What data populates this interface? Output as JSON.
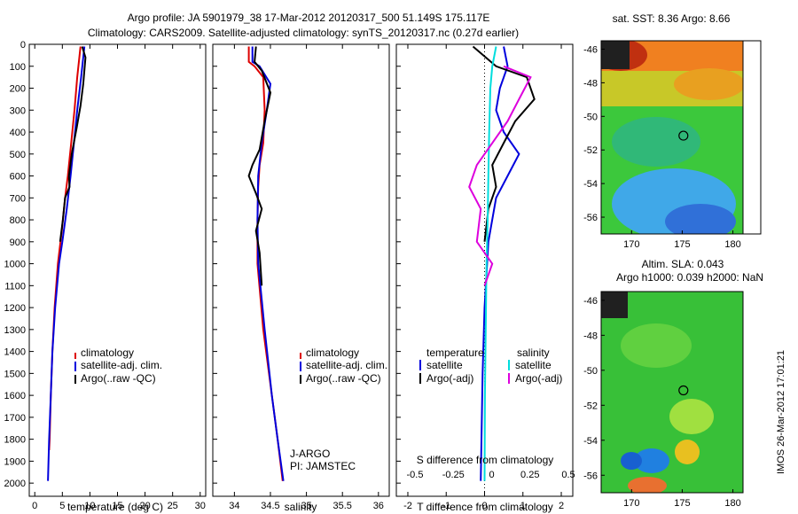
{
  "title": {
    "line1": "Argo profile: JA 5901979_38 17-Mar-2012 20120317_500 51.149S 175.117E",
    "line2": "Climatology: CARS2009. Satellite-adjusted climatology: synTS_20120317.nc (0.27d earlier)"
  },
  "side_label": "IMOS 26-Mar-2012 17:01:21",
  "colors": {
    "clim": "#dd0000",
    "sat": "#0000dd",
    "argo": "#000000",
    "sat_s": "#00dddd",
    "argo_s": "#dd00dd"
  },
  "chart_data": [
    {
      "type": "line",
      "id": "temperature",
      "xlabel": "temperature (deg C)",
      "xlim": [
        -1,
        31
      ],
      "ylim": [
        0,
        2060
      ],
      "xticks": [
        0,
        5,
        10,
        15,
        20,
        25,
        30
      ],
      "yticks": [
        0,
        100,
        200,
        300,
        400,
        500,
        600,
        700,
        800,
        900,
        1000,
        1100,
        1200,
        1300,
        1400,
        1500,
        1600,
        1700,
        1800,
        1900,
        2000
      ],
      "legend": [
        "climatology",
        "satellite-adj. clim.",
        "Argo(..raw -QC)"
      ],
      "series": [
        {
          "name": "climatology",
          "color": "#dd0000",
          "points": [
            [
              8.3,
              10
            ],
            [
              7.7,
              150
            ],
            [
              7.2,
              300
            ],
            [
              6.6,
              450
            ],
            [
              6.0,
              600
            ],
            [
              5.5,
              700
            ],
            [
              4.9,
              850
            ],
            [
              4.2,
              1000
            ],
            [
              3.6,
              1200
            ],
            [
              3.2,
              1400
            ],
            [
              2.9,
              1600
            ],
            [
              2.7,
              1800
            ],
            [
              2.6,
              1850
            ]
          ]
        },
        {
          "name": "satellite-adj. clim.",
          "color": "#0000dd",
          "points": [
            [
              9.0,
              10
            ],
            [
              8.4,
              150
            ],
            [
              7.7,
              300
            ],
            [
              7.1,
              450
            ],
            [
              6.5,
              600
            ],
            [
              5.8,
              750
            ],
            [
              5.0,
              900
            ],
            [
              4.4,
              1000
            ],
            [
              3.7,
              1200
            ],
            [
              3.2,
              1400
            ],
            [
              2.9,
              1600
            ],
            [
              2.6,
              1800
            ],
            [
              2.4,
              1990
            ]
          ]
        },
        {
          "name": "Argo(..raw -QC)",
          "color": "#000000",
          "points": [
            [
              8.6,
              10
            ],
            [
              9.2,
              60
            ],
            [
              8.8,
              180
            ],
            [
              8.3,
              280
            ],
            [
              7.6,
              380
            ],
            [
              6.7,
              500
            ],
            [
              6.2,
              600
            ],
            [
              6.3,
              650
            ],
            [
              5.5,
              700
            ],
            [
              5.1,
              800
            ],
            [
              4.6,
              900
            ]
          ]
        }
      ]
    },
    {
      "type": "line",
      "id": "salinity",
      "xlabel": "salinity",
      "xlim": [
        33.7,
        36.15
      ],
      "ylim": [
        0,
        2060
      ],
      "xticks": [
        34,
        34.5,
        35,
        35.5,
        36
      ],
      "legend": [
        "climatology",
        "satellite-adj. clim.",
        "Argo(..raw -QC)"
      ],
      "annotations": [
        "J-ARGO",
        "PI: JAMSTEC"
      ],
      "series": [
        {
          "name": "climatology",
          "color": "#dd0000",
          "points": [
            [
              34.2,
              10
            ],
            [
              34.2,
              80
            ],
            [
              34.28,
              100
            ],
            [
              34.4,
              150
            ],
            [
              34.42,
              300
            ],
            [
              34.4,
              450
            ],
            [
              34.35,
              550
            ],
            [
              34.33,
              650
            ],
            [
              34.32,
              800
            ],
            [
              34.32,
              1000
            ],
            [
              34.4,
              1300
            ],
            [
              34.52,
              1600
            ],
            [
              34.6,
              1800
            ],
            [
              34.67,
              1990
            ]
          ]
        },
        {
          "name": "satellite-adj. clim.",
          "color": "#0000dd",
          "points": [
            [
              34.25,
              10
            ],
            [
              34.25,
              80
            ],
            [
              34.35,
              100
            ],
            [
              34.5,
              180
            ],
            [
              34.45,
              300
            ],
            [
              34.38,
              450
            ],
            [
              34.33,
              600
            ],
            [
              34.32,
              800
            ],
            [
              34.33,
              1000
            ],
            [
              34.42,
              1300
            ],
            [
              34.52,
              1600
            ],
            [
              34.6,
              1800
            ],
            [
              34.68,
              1990
            ]
          ]
        },
        {
          "name": "Argo(..raw -QC)",
          "color": "#000000",
          "points": [
            [
              34.3,
              10
            ],
            [
              34.28,
              80
            ],
            [
              34.38,
              120
            ],
            [
              34.5,
              220
            ],
            [
              34.42,
              350
            ],
            [
              34.35,
              480
            ],
            [
              34.25,
              550
            ],
            [
              34.2,
              600
            ],
            [
              34.3,
              680
            ],
            [
              34.38,
              750
            ],
            [
              34.3,
              850
            ],
            [
              34.35,
              950
            ],
            [
              34.38,
              1100
            ]
          ]
        }
      ]
    },
    {
      "type": "line",
      "id": "difference",
      "xlabel": "T difference from climatology",
      "xlabel2": "S difference from climatology",
      "xlim": [
        -2.3,
        2.3
      ],
      "ylim": [
        0,
        2060
      ],
      "xticks": [
        -2,
        -1,
        0,
        1,
        2
      ],
      "xticks2": [
        "-0.5",
        "-0.25",
        "0",
        "0.25",
        "0.5"
      ],
      "legend_headers": [
        "temperature",
        "salinity"
      ],
      "legend": [
        "satellite",
        "Argo(-adj)",
        "satellite",
        "Argo(-adj)"
      ],
      "series": [
        {
          "name": "T satellite",
          "color": "#0000dd",
          "points": [
            [
              0.5,
              10
            ],
            [
              0.6,
              100
            ],
            [
              0.4,
              200
            ],
            [
              0.3,
              300
            ],
            [
              0.5,
              400
            ],
            [
              0.9,
              500
            ],
            [
              0.6,
              600
            ],
            [
              0.3,
              700
            ],
            [
              0.1,
              900
            ],
            [
              0.0,
              1200
            ],
            [
              -0.05,
              1500
            ],
            [
              -0.1,
              1990
            ]
          ]
        },
        {
          "name": "T Argo(-adj)",
          "color": "#000000",
          "points": [
            [
              -0.3,
              10
            ],
            [
              0.3,
              100
            ],
            [
              1.1,
              150
            ],
            [
              1.3,
              250
            ],
            [
              0.8,
              350
            ],
            [
              0.5,
              450
            ],
            [
              0.2,
              550
            ],
            [
              0.3,
              650
            ],
            [
              0.1,
              750
            ],
            [
              0.0,
              900
            ]
          ]
        },
        {
          "name": "S satellite",
          "color": "#00dddd",
          "points": [
            [
              0.3,
              10
            ],
            [
              0.2,
              100
            ],
            [
              0.15,
              200
            ],
            [
              0.12,
              400
            ],
            [
              0.1,
              600
            ],
            [
              0.08,
              800
            ],
            [
              0.05,
              1000
            ],
            [
              0.03,
              1300
            ],
            [
              0.01,
              1600
            ],
            [
              0.0,
              1990
            ]
          ]
        },
        {
          "name": "S Argo(-adj)",
          "color": "#dd00dd",
          "points": [
            [
              0.5,
              100
            ],
            [
              1.2,
              150
            ],
            [
              0.9,
              250
            ],
            [
              0.6,
              350
            ],
            [
              0.2,
              450
            ],
            [
              -0.2,
              550
            ],
            [
              -0.4,
              650
            ],
            [
              -0.1,
              750
            ],
            [
              -0.2,
              900
            ],
            [
              0.2,
              1000
            ],
            [
              0.0,
              1100
            ]
          ]
        }
      ]
    },
    {
      "type": "heatmap",
      "id": "sst-map",
      "title": "sat. SST: 8.36  Argo: 8.66",
      "xlim": [
        167,
        181
      ],
      "ylim": [
        -57,
        -45.5
      ],
      "xticks": [
        170,
        175,
        180
      ],
      "yticks": [
        -46,
        -48,
        -50,
        -52,
        -54,
        -56
      ],
      "marker": [
        175.117,
        -51.149
      ]
    },
    {
      "type": "heatmap",
      "id": "sla-map",
      "title": "Altim. SLA: 0.043",
      "subtitle": "Argo h1000: 0.039  h2000: NaN",
      "xlim": [
        167,
        181
      ],
      "ylim": [
        -57,
        -45.5
      ],
      "xticks": [
        170,
        175,
        180
      ],
      "yticks": [
        -46,
        -48,
        -50,
        -52,
        -54,
        -56
      ],
      "marker": [
        175.117,
        -51.149
      ]
    }
  ]
}
